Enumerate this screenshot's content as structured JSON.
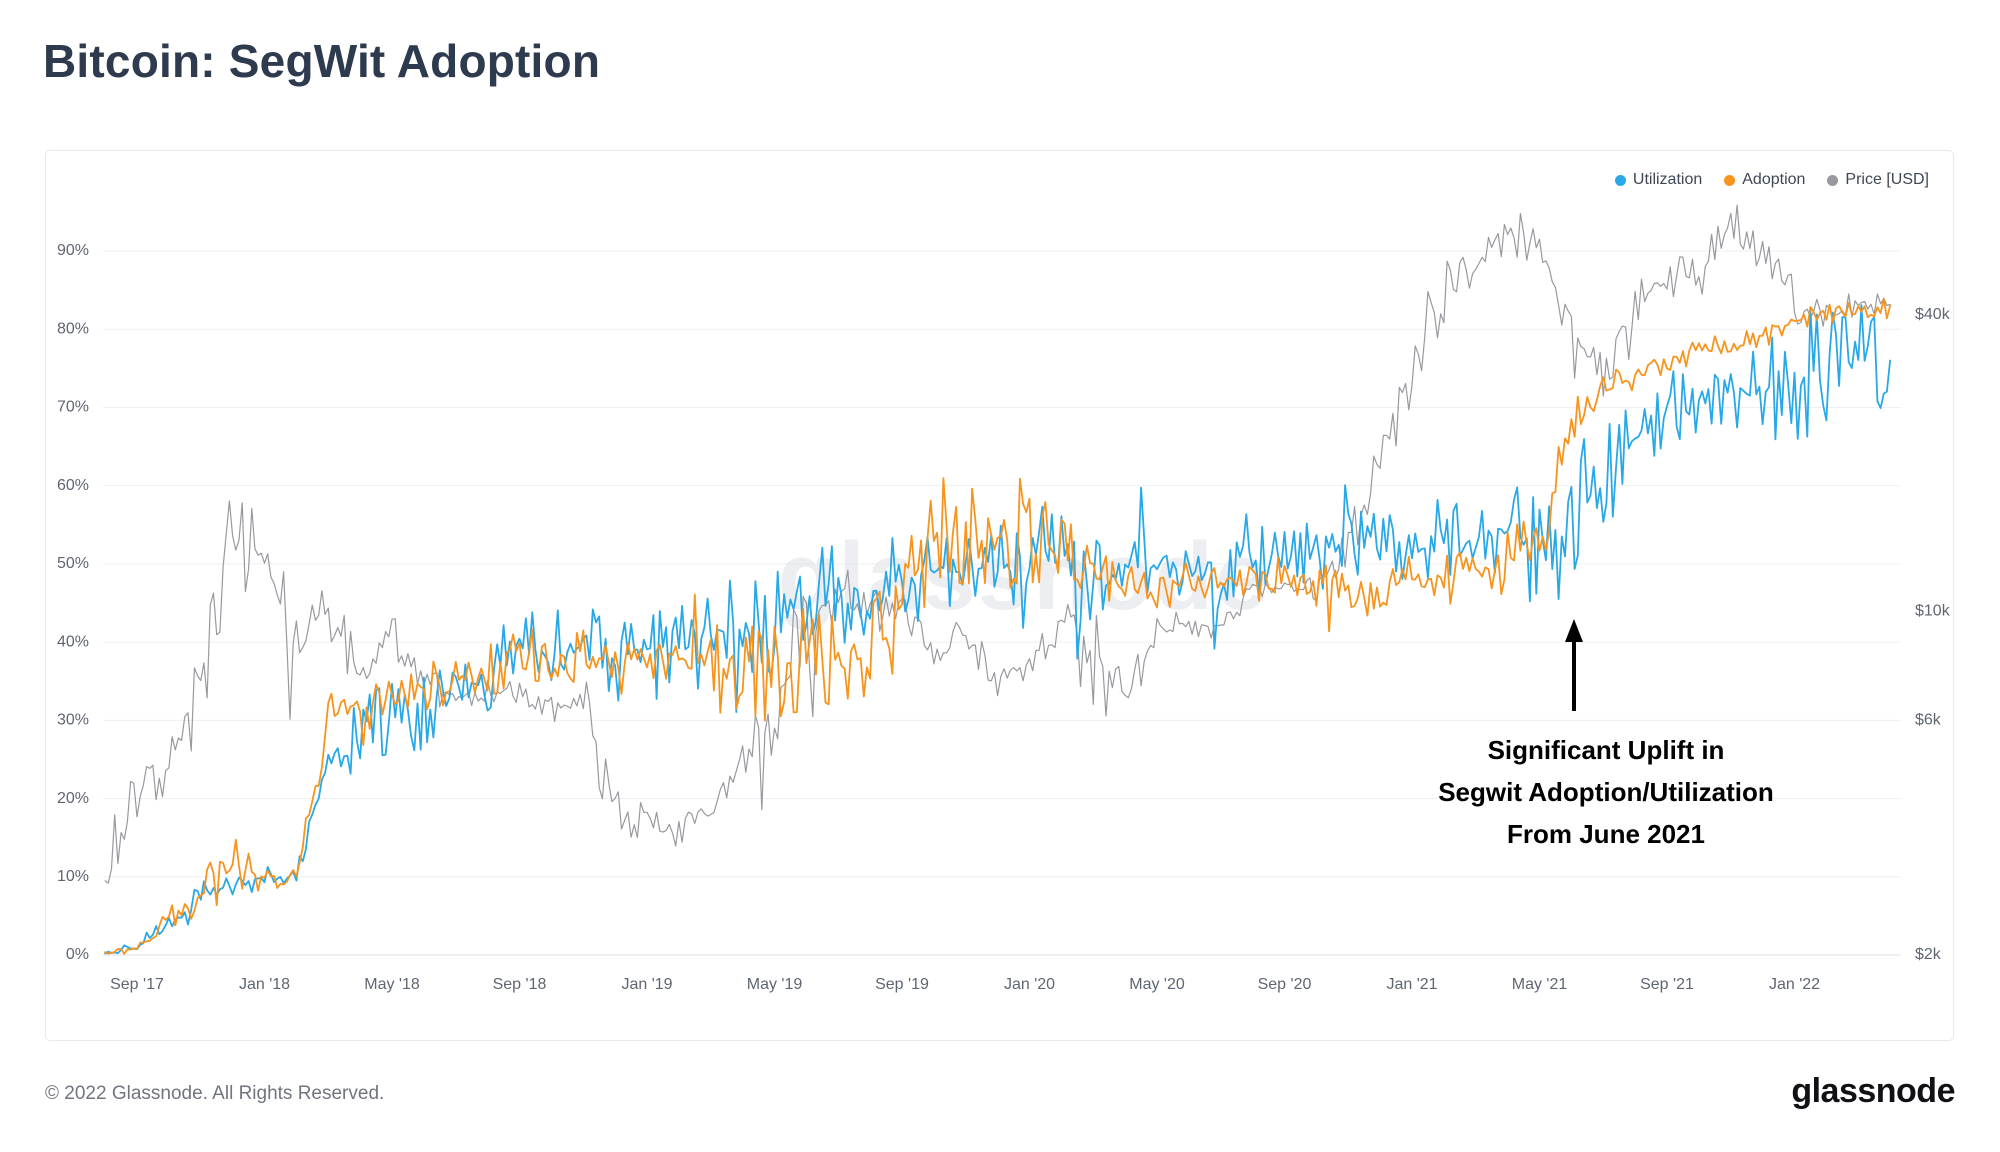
{
  "header": {
    "title": "Bitcoin: SegWit Adoption"
  },
  "watermark": "glassnode",
  "annotation": {
    "lines": [
      "Significant Uplift in",
      "Segwit Adoption/Utilization",
      "From June 2021"
    ]
  },
  "footer": {
    "copyright": "© 2022 Glassnode. All Rights Reserved.",
    "brand": "glassnode"
  },
  "chart_data": {
    "type": "line",
    "title": "Bitcoin: SegWit Adoption",
    "x_start_month": "Aug 2017",
    "x_end_month": "Apr 2022",
    "samples_per_month": 1,
    "x_tick_labels": [
      "Sep '17",
      "Jan '18",
      "May '18",
      "Sep '18",
      "Jan '19",
      "May '19",
      "Sep '19",
      "Jan '20",
      "May '20",
      "Sep '20",
      "Jan '21",
      "May '21",
      "Sep '21",
      "Jan '22"
    ],
    "left_axis": {
      "unit": "%",
      "min": 0,
      "max": 97,
      "ticks": [
        0,
        10,
        20,
        30,
        40,
        50,
        60,
        70,
        80,
        90
      ]
    },
    "right_axis": {
      "unit": "USD",
      "scale": "log",
      "anchor_value_k": 2,
      "pct_per_decade": 62.9,
      "ticks": [
        {
          "label": "$2k",
          "value": 2
        },
        {
          "label": "$6k",
          "value": 6
        },
        {
          "label": "$10k",
          "value": 10
        },
        {
          "label": "$40k",
          "value": 40
        }
      ]
    },
    "grid": "horizontal",
    "legend_position": "top-right",
    "series": [
      {
        "name": "Utilization",
        "axis": "left",
        "color": "#29a8e8",
        "values": [
          0.2,
          0.8,
          4.5,
          7.5,
          9,
          10,
          10,
          26,
          28,
          30,
          32,
          34,
          36,
          38,
          39,
          39,
          38,
          39,
          40,
          41,
          42,
          43,
          45,
          46,
          46,
          48,
          49,
          50,
          49,
          51,
          50,
          48,
          49,
          50,
          50,
          50,
          51,
          52,
          52,
          52,
          52,
          53,
          53,
          53,
          54,
          52,
          54,
          62,
          66,
          69,
          71,
          72,
          73,
          74,
          75,
          76,
          76
        ],
        "noise": [
          0.2,
          0.4,
          1,
          1.5,
          1.5,
          1,
          1,
          3,
          3,
          3.5,
          4,
          4,
          4,
          4.5,
          4,
          4,
          4,
          4.5,
          4.5,
          4.5,
          4.5,
          5,
          5,
          4.5,
          4,
          4,
          4,
          4,
          4,
          4.5,
          4.5,
          4,
          4,
          4,
          4,
          4,
          4,
          3.5,
          3.5,
          3.5,
          3.5,
          3.5,
          3.5,
          3.5,
          4,
          6,
          8,
          5,
          4.5,
          4,
          4,
          4.5,
          5,
          6,
          6,
          6,
          6
        ]
      },
      {
        "name": "Adoption",
        "axis": "left",
        "color": "#f7941e",
        "values": [
          0.2,
          0.8,
          4.5,
          7.5,
          11,
          10,
          10,
          30,
          31,
          33,
          34,
          35,
          37,
          38,
          39,
          38,
          37,
          38,
          37,
          36,
          37,
          36,
          38,
          38,
          37,
          44,
          54,
          54,
          53,
          55,
          52,
          48,
          48,
          48,
          47,
          47,
          48,
          48,
          47,
          47,
          47,
          48,
          48,
          48,
          50,
          52,
          68,
          72,
          74,
          75,
          77,
          78,
          79,
          81,
          82,
          82,
          83
        ],
        "noise": [
          0.2,
          0.4,
          1,
          2,
          3,
          1,
          1,
          2.5,
          2.5,
          2.5,
          2.5,
          2.5,
          2.5,
          3,
          2.5,
          2.5,
          3,
          3,
          3.5,
          4,
          4,
          4.5,
          4.5,
          4,
          5,
          5,
          5,
          5,
          5,
          5,
          4,
          2.5,
          2.5,
          2.5,
          2,
          2,
          2,
          2,
          2,
          2,
          2,
          2.5,
          2.5,
          2.5,
          3,
          3,
          2,
          1.5,
          1.2,
          1.2,
          1.2,
          1,
          1,
          1,
          1,
          1,
          1
        ]
      },
      {
        "name": "Price [USD]",
        "axis": "right",
        "color": "#97999e",
        "values_usd_k": [
          2.8,
          4.2,
          4.8,
          7.2,
          15,
          12.5,
          8.2,
          10.0,
          7.2,
          9.0,
          7.4,
          6.6,
          7.0,
          6.8,
          6.5,
          6.3,
          3.9,
          3.7,
          3.5,
          3.9,
          5.1,
          5.8,
          9.0,
          11.0,
          10.2,
          9.8,
          8.3,
          9.0,
          7.3,
          7.8,
          9.4,
          8.2,
          6.6,
          9.0,
          9.5,
          9.2,
          11.3,
          11.0,
          11.0,
          13.8,
          19.5,
          32,
          44,
          50,
          58,
          56,
          36,
          31,
          42,
          48,
          48,
          64,
          53,
          43,
          39,
          42,
          42
        ],
        "noise": [
          0.3,
          0.5,
          0.4,
          1.2,
          2.5,
          2,
          1,
          1,
          0.7,
          0.6,
          0.5,
          0.4,
          0.4,
          0.3,
          0.3,
          0.8,
          0.4,
          0.2,
          0.2,
          0.2,
          0.4,
          0.8,
          1.5,
          1,
          0.7,
          0.6,
          0.5,
          0.6,
          0.4,
          0.5,
          0.6,
          1.5,
          0.8,
          0.5,
          0.4,
          0.4,
          0.5,
          0.5,
          0.5,
          1,
          2,
          4,
          5,
          4,
          4,
          5,
          4,
          3,
          3,
          3,
          4,
          4,
          4,
          3,
          2.5,
          2.5,
          2.5
        ]
      }
    ]
  }
}
